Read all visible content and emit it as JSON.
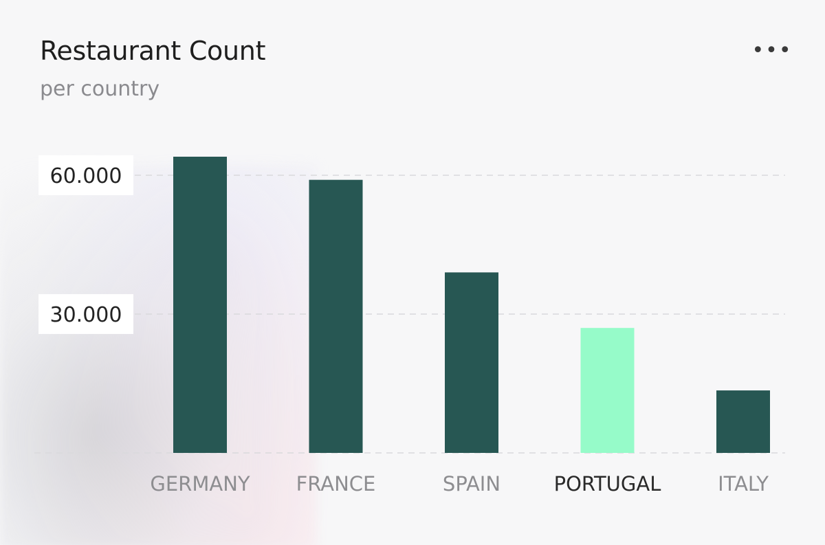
{
  "card": {
    "title": "Restaurant Count",
    "subtitle": "per country",
    "menu_icon": "more-horizontal-icon"
  },
  "colors": {
    "bar": "#275753",
    "bar_highlight": "#96fbc9",
    "gridline": "#d9d9dc"
  },
  "chart_data": {
    "type": "bar",
    "title": "Restaurant Count",
    "subtitle": "per country",
    "categories": [
      "GERMANY",
      "FRANCE",
      "SPAIN",
      "PORTUGAL",
      "ITALY"
    ],
    "values": [
      64000,
      59000,
      39000,
      27000,
      13500
    ],
    "highlighted_category": "PORTUGAL",
    "yticks": [
      30000,
      60000
    ],
    "ytick_labels": [
      "30.000",
      "60.000"
    ],
    "ylim": [
      0,
      64000
    ],
    "grid": true,
    "legend": "none",
    "xlabel": "",
    "ylabel": ""
  }
}
